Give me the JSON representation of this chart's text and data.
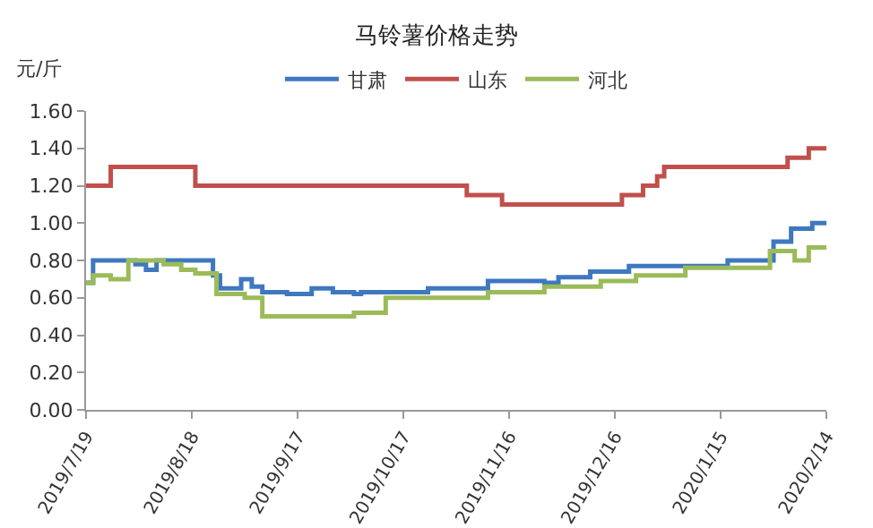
{
  "chart_data": {
    "type": "step",
    "title": "马铃薯价格走势",
    "ylabel": "元/斤",
    "legend": "top",
    "grid": false,
    "marker": "none",
    "line_style": "solid",
    "xlim": [
      "2019-07-19",
      "2020-02-14"
    ],
    "xticks": [
      {
        "value": "2019-07-19",
        "label": "2019/7/19"
      },
      {
        "value": "2019-08-18",
        "label": "2019/8/18"
      },
      {
        "value": "2019-09-17",
        "label": "2019/9/17"
      },
      {
        "value": "2019-10-17",
        "label": "2019/10/17"
      },
      {
        "value": "2019-11-16",
        "label": "2019/11/16"
      },
      {
        "value": "2019-12-16",
        "label": "2019/12/16"
      },
      {
        "value": "2020-01-15",
        "label": "2020/1/15"
      },
      {
        "value": "2020-02-14",
        "label": "2020/2/14"
      }
    ],
    "ylim": [
      0,
      1.6
    ],
    "yticks": [
      {
        "value": 0,
        "label": "0.00"
      },
      {
        "value": 0.2,
        "label": "0.20"
      },
      {
        "value": 0.4,
        "label": "0.40"
      },
      {
        "value": 0.6,
        "label": "0.60"
      },
      {
        "value": 0.8,
        "label": "0.80"
      },
      {
        "value": 1,
        "label": "1.00"
      },
      {
        "value": 1.2,
        "label": "1.20"
      },
      {
        "value": 1.4,
        "label": "1.40"
      },
      {
        "value": 1.6,
        "label": "1.60"
      }
    ],
    "series": [
      {
        "name": "甘肃",
        "color": "#3e78bf",
        "x": [
          "2019-07-19",
          "2019-07-21",
          "2019-08-02",
          "2019-08-05",
          "2019-08-08",
          "2019-08-24",
          "2019-08-26",
          "2019-09-01",
          "2019-09-04",
          "2019-09-07",
          "2019-09-14",
          "2019-09-21",
          "2019-09-27",
          "2019-10-03",
          "2019-10-05",
          "2019-10-24",
          "2019-11-10",
          "2019-11-26",
          "2019-11-30",
          "2019-12-09",
          "2019-12-20",
          "2020-01-17",
          "2020-01-30",
          "2020-02-04",
          "2020-02-10",
          "2020-02-14"
        ],
        "values": [
          0.68,
          0.8,
          0.78,
          0.75,
          0.8,
          0.72,
          0.65,
          0.7,
          0.66,
          0.63,
          0.62,
          0.65,
          0.63,
          0.62,
          0.63,
          0.65,
          0.69,
          0.68,
          0.71,
          0.74,
          0.77,
          0.8,
          0.9,
          0.97,
          1.0,
          1.0
        ]
      },
      {
        "name": "山东",
        "color": "#c0504d",
        "x": [
          "2019-07-19",
          "2019-07-26",
          "2019-08-19",
          "2019-11-04",
          "2019-11-14",
          "2019-12-18",
          "2019-12-24",
          "2019-12-28",
          "2019-12-30",
          "2020-02-03",
          "2020-02-09",
          "2020-02-14"
        ],
        "values": [
          1.2,
          1.3,
          1.2,
          1.15,
          1.1,
          1.15,
          1.2,
          1.25,
          1.3,
          1.35,
          1.4,
          1.4
        ]
      },
      {
        "name": "河北",
        "color": "#9bbb59",
        "x": [
          "2019-07-19",
          "2019-07-21",
          "2019-07-26",
          "2019-07-31",
          "2019-08-10",
          "2019-08-15",
          "2019-08-19",
          "2019-08-25",
          "2019-09-02",
          "2019-09-07",
          "2019-10-03",
          "2019-10-12",
          "2019-11-10",
          "2019-11-26",
          "2019-12-12",
          "2019-12-22",
          "2020-01-05",
          "2020-01-29",
          "2020-02-05",
          "2020-02-09",
          "2020-02-14"
        ],
        "values": [
          0.68,
          0.72,
          0.7,
          0.8,
          0.78,
          0.75,
          0.73,
          0.62,
          0.6,
          0.5,
          0.52,
          0.6,
          0.63,
          0.66,
          0.69,
          0.72,
          0.76,
          0.85,
          0.8,
          0.87,
          0.87
        ]
      }
    ]
  }
}
